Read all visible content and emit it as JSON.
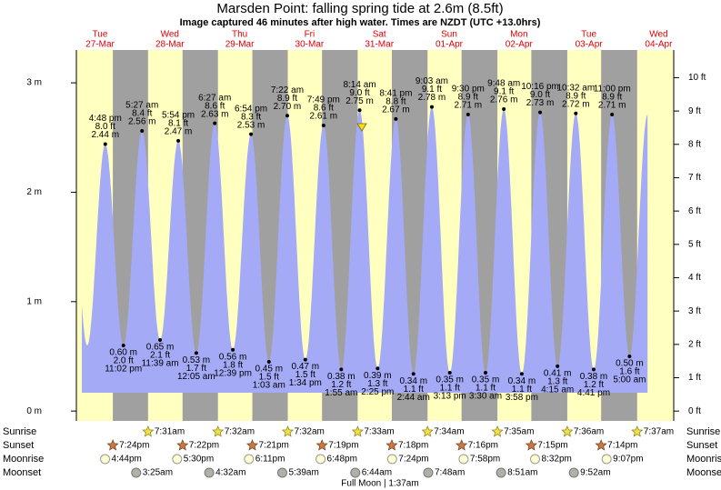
{
  "chart_data": {
    "type": "area",
    "title": "Marsden Point: falling  spring tide at 2.6m (8.5ft)",
    "subtitle": "Image captured 46 minutes after high water. Times are NZDT (UTC +13.0hrs)",
    "days": [
      {
        "weekday": "Tue",
        "date": "27-Mar"
      },
      {
        "weekday": "Wed",
        "date": "28-Mar"
      },
      {
        "weekday": "Thu",
        "date": "29-Mar"
      },
      {
        "weekday": "Fri",
        "date": "30-Mar"
      },
      {
        "weekday": "Sat",
        "date": "31-Mar"
      },
      {
        "weekday": "Sun",
        "date": "01-Apr"
      },
      {
        "weekday": "Mon",
        "date": "02-Apr"
      },
      {
        "weekday": "Tue",
        "date": "03-Apr"
      },
      {
        "weekday": "Wed",
        "date": "04-Apr"
      }
    ],
    "tides": {
      "times": [
        "4:48 pm",
        "11:02 pm",
        "5:27 am",
        "11:39 am",
        "5:54 pm",
        "12:05 am",
        "6:27 am",
        "12:39 pm",
        "6:54 pm",
        "1:03 am",
        "7:22 am",
        "1:34 pm",
        "7:49 pm",
        "1:55 am",
        "8:14 am",
        "2:25 pm",
        "8:41 pm",
        "2:44 am",
        "9:03 am",
        "3:13 pm",
        "9:30 pm",
        "3:30 am",
        "9:48 am",
        "3:58 pm",
        "10:16 pm",
        "4:15 am",
        "10:32 am",
        "4:41 pm",
        "11:00 pm",
        "5:00 am"
      ],
      "values": [
        2.44,
        0.6,
        2.56,
        0.65,
        2.47,
        0.53,
        2.63,
        0.56,
        2.53,
        0.45,
        2.7,
        0.47,
        2.61,
        0.38,
        2.75,
        0.39,
        2.67,
        0.34,
        2.78,
        0.35,
        2.71,
        0.35,
        2.76,
        0.34,
        2.73,
        0.41,
        2.72,
        0.38,
        2.71,
        0.5
      ],
      "value_labels": [
        "2.44 m",
        "0.60 m",
        "2.56 m",
        "0.65 m",
        "2.47 m",
        "0.53 m",
        "2.63 m",
        "0.56 m",
        "2.53 m",
        "0.45 m",
        "2.70 m",
        "0.47 m",
        "2.61 m",
        "0.38 m",
        "2.75 m",
        "0.39 m",
        "2.67 m",
        "0.34 m",
        "2.78 m",
        "0.35 m",
        "2.71 m",
        "0.35 m",
        "2.76 m",
        "0.34 m",
        "2.73 m",
        "0.41 m",
        "2.72 m",
        "0.38 m",
        "2.71 m",
        "0.50 m"
      ],
      "ft_labels": [
        "8.0 ft",
        "2.0 ft",
        "8.4 ft",
        "2.1 ft",
        "8.1 ft",
        "1.7 ft",
        "8.6 ft",
        "1.8 ft",
        "8.3 ft",
        "1.5 ft",
        "8.9 ft",
        "1.5 ft",
        "8.6 ft",
        "1.2 ft",
        "9.0 ft",
        "1.3 ft",
        "8.8 ft",
        "1.1 ft",
        "9.1 ft",
        "1.1 ft",
        "8.9 ft",
        "1.1 ft",
        "9.1 ft",
        "1.1 ft",
        "9.0 ft",
        "1.3 ft",
        "8.9 ft",
        "1.2 ft",
        "8.9 ft",
        "1.6 ft"
      ]
    },
    "ylim": [
      -0.09,
      3.3
    ],
    "yticks": [
      {
        "value": 0,
        "label": "0 m"
      },
      {
        "value": 1,
        "label": "1 m"
      },
      {
        "value": 2,
        "label": "2 m"
      },
      {
        "value": 3,
        "label": "3 m"
      }
    ],
    "y2lim": [
      -0.295,
      10.83
    ],
    "y2ticks": [
      {
        "value": 0,
        "label": "0 ft"
      },
      {
        "value": 1,
        "label": "1 ft"
      },
      {
        "value": 2,
        "label": "2 ft"
      },
      {
        "value": 3,
        "label": "3 ft"
      },
      {
        "value": 4,
        "label": "4 ft"
      },
      {
        "value": 5,
        "label": "5 ft"
      },
      {
        "value": 6,
        "label": "6 ft"
      },
      {
        "value": 7,
        "label": "7 ft"
      },
      {
        "value": 8,
        "label": "8 ft"
      },
      {
        "value": 9,
        "label": "9 ft"
      },
      {
        "value": 10,
        "label": "10 ft"
      }
    ],
    "sun": {
      "sunrise_label": "Sunrise",
      "sunset_label": "Sunset",
      "sunrise": [
        "7:31am",
        "7:32am",
        "7:32am",
        "7:33am",
        "7:34am",
        "7:35am",
        "7:36am",
        "7:37am"
      ],
      "sunset": [
        "7:24pm",
        "7:22pm",
        "7:21pm",
        "7:19pm",
        "7:18pm",
        "7:16pm",
        "7:15pm",
        "7:14pm"
      ]
    },
    "moon": {
      "moonrise_label": "Moonrise",
      "moonset_label": "Moonset",
      "moonrise": [
        "4:44pm",
        "5:30pm",
        "6:11pm",
        "6:48pm",
        "7:24pm",
        "7:58pm",
        "8:32pm",
        "9:07pm"
      ],
      "moonset": [
        "3:25am",
        "4:32am",
        "5:39am",
        "6:44am",
        "7:48am",
        "8:51am",
        "9:52am"
      ]
    },
    "note": "Full Moon | 1:37am",
    "colors": {
      "tide": "#a4aaf6",
      "night": "#a0a0a0",
      "day": "#ffffc0",
      "day_label": "#e00000"
    }
  }
}
